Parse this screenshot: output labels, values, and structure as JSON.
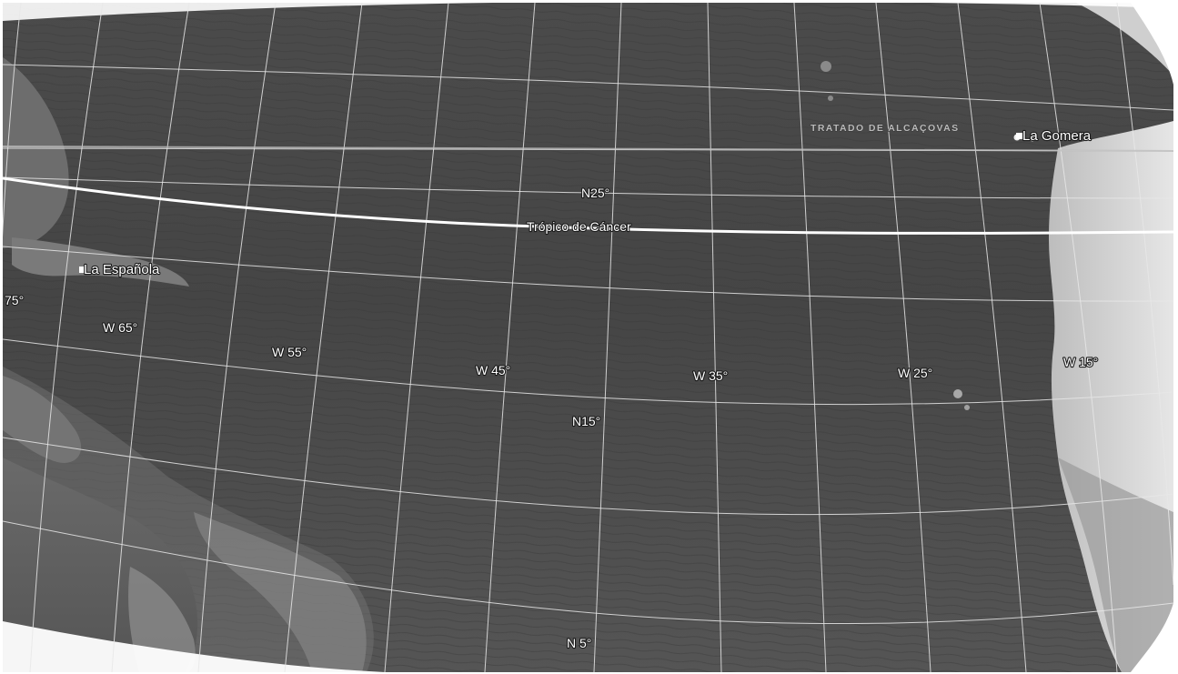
{
  "map": {
    "view": "globe-ocean",
    "style": "greyscale-satellite",
    "gridlines": true,
    "colors": {
      "ocean": "#4d4d4d",
      "ocean_deep": "#3f3f3f",
      "land": "#8f8f8f",
      "land_bright": "#d9d9d9",
      "gridline": "#e8e8e8",
      "label": "#ffffff"
    }
  },
  "labels": {
    "treaty_line": "TRATADO DE ALCAÇOVAS",
    "la_gomera": "La Gomera",
    "la_espanola": "La Española",
    "tropic_of_cancer": "Trópico de Cáncer",
    "n25": "N25°",
    "n15": "N15°",
    "n5": "N 5°",
    "w75": "75°",
    "w65": "W 65°",
    "w55": "W 55°",
    "w45": "W 45°",
    "w35": "W 35°",
    "w25": "W 25°",
    "w15": "W 15°"
  }
}
